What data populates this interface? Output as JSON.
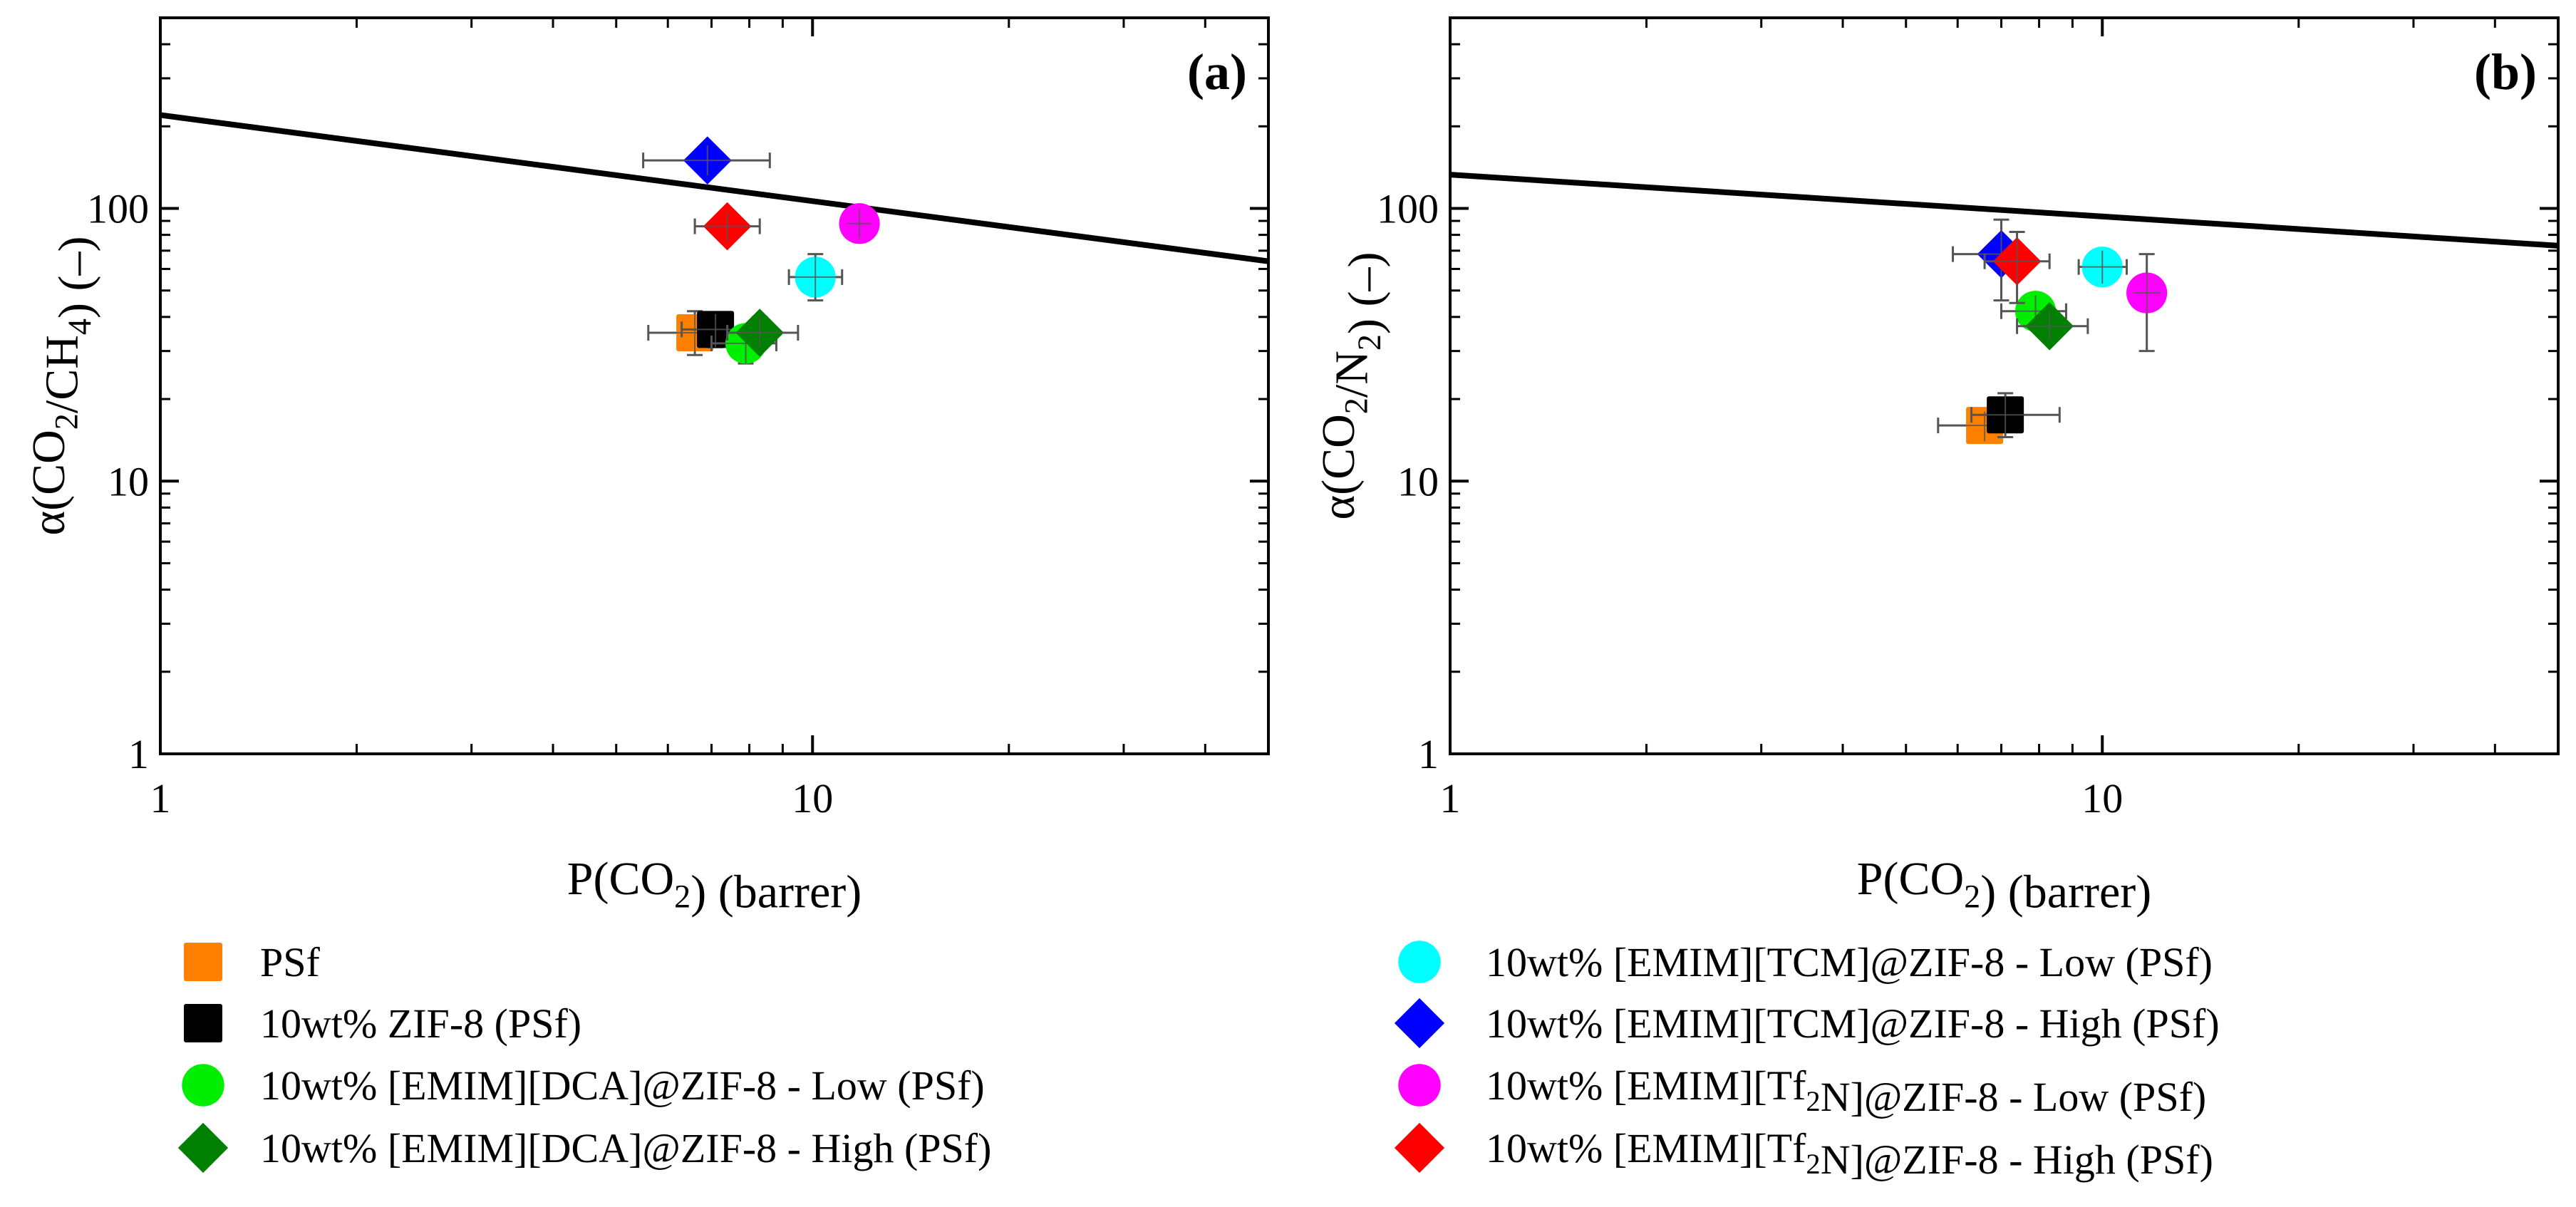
{
  "colors": {
    "PSf": "#ff8000",
    "ZIF8": "#000000",
    "DCA_low": "#00ee00",
    "DCA_high": "#008000",
    "TCM_low": "#00ffff",
    "TCM_high": "#0000ff",
    "Tf2N_low": "#ff00ff",
    "Tf2N_high": "#ff0000",
    "bound": "#000000",
    "error_bar": "#555555"
  },
  "chart_data": [
    {
      "type": "scatter",
      "panel_label": "(a)",
      "xlabel": "P(CO2) (barrer)",
      "ylabel": "α(CO2/CH4) (–)",
      "xscale": "log",
      "yscale": "log",
      "xlim": [
        1,
        50
      ],
      "ylim": [
        1,
        500
      ],
      "xticks": [
        1,
        10
      ],
      "yticks": [
        1,
        10,
        100
      ],
      "xtick_labels": [
        "1",
        "10"
      ],
      "ytick_labels": [
        "1",
        "10",
        "100"
      ],
      "upper_bound": {
        "x": [
          1,
          50
        ],
        "y": [
          220,
          64
        ]
      },
      "series": [
        {
          "name": "PSf",
          "marker": "square",
          "color_key": "PSf",
          "x": 6.6,
          "y": 35,
          "xerr": [
            5.6,
            7.4
          ],
          "yerr": [
            29,
            42
          ]
        },
        {
          "name": "10wt% ZIF-8 (PSf)",
          "marker": "square",
          "color_key": "ZIF8",
          "x": 7.1,
          "y": 36,
          "xerr": [
            6.3,
            8.1
          ],
          "yerr": [
            31,
            41
          ]
        },
        {
          "name": "10wt% [EMIM][DCA]@ZIF-8 - Low (PSf)",
          "marker": "circle",
          "color_key": "DCA_low",
          "x": 7.9,
          "y": 32,
          "xerr": [
            7.0,
            8.8
          ],
          "yerr": [
            27,
            37
          ]
        },
        {
          "name": "10wt% [EMIM][DCA]@ZIF-8 - High (PSf)",
          "marker": "diamond",
          "color_key": "DCA_high",
          "x": 8.3,
          "y": 35,
          "xerr": [
            7.4,
            9.5
          ],
          "yerr": [
            31,
            40
          ]
        },
        {
          "name": "10wt% [EMIM][TCM]@ZIF-8 - Low (PSf)",
          "marker": "circle",
          "color_key": "TCM_low",
          "x": 10.1,
          "y": 56,
          "xerr": [
            9.2,
            11.1
          ],
          "yerr": [
            46,
            68
          ]
        },
        {
          "name": "10wt% [EMIM][TCM]@ZIF-8 - High (PSf)",
          "marker": "diamond",
          "color_key": "TCM_high",
          "x": 6.9,
          "y": 150,
          "xerr": [
            5.5,
            8.6
          ],
          "yerr": [
            132,
            170
          ]
        },
        {
          "name": "10wt% [EMIM][Tf2N]@ZIF-8 - Low (PSf)",
          "marker": "circle",
          "color_key": "Tf2N_low",
          "x": 11.8,
          "y": 88,
          "xerr": [
            11.3,
            12.3
          ],
          "yerr": [
            78,
            99
          ]
        },
        {
          "name": "10wt% [EMIM][Tf2N]@ZIF-8 - High (PSf)",
          "marker": "diamond",
          "color_key": "Tf2N_high",
          "x": 7.4,
          "y": 86,
          "xerr": [
            6.6,
            8.3
          ],
          "yerr": [
            76,
            97
          ]
        }
      ]
    },
    {
      "type": "scatter",
      "panel_label": "(b)",
      "xlabel": "P(CO2) (barrer)",
      "ylabel": "α(CO2/N2) (–)",
      "xscale": "log",
      "yscale": "log",
      "xlim": [
        1,
        50
      ],
      "ylim": [
        1,
        500
      ],
      "xticks": [
        1,
        10
      ],
      "yticks": [
        1,
        10,
        100
      ],
      "xtick_labels": [
        "1",
        "10"
      ],
      "ytick_labels": [
        "1",
        "10",
        "100"
      ],
      "upper_bound": {
        "x": [
          1,
          50
        ],
        "y": [
          133,
          73
        ]
      },
      "series": [
        {
          "name": "PSf",
          "marker": "square",
          "color_key": "PSf",
          "x": 6.6,
          "y": 16,
          "xerr": [
            5.6,
            7.4
          ],
          "yerr": [
            14,
            18
          ]
        },
        {
          "name": "10wt% ZIF-8 (PSf)",
          "marker": "square",
          "color_key": "ZIF8",
          "x": 7.1,
          "y": 17.5,
          "xerr": [
            6.3,
            8.6
          ],
          "yerr": [
            14.5,
            21
          ]
        },
        {
          "name": "10wt% [EMIM][DCA]@ZIF-8 - Low (PSf)",
          "marker": "circle",
          "color_key": "DCA_low",
          "x": 7.9,
          "y": 42,
          "xerr": [
            7.0,
            8.8
          ],
          "yerr": [
            37,
            48
          ]
        },
        {
          "name": "10wt% [EMIM][DCA]@ZIF-8 - High (PSf)",
          "marker": "diamond",
          "color_key": "DCA_high",
          "x": 8.3,
          "y": 37,
          "xerr": [
            7.4,
            9.5
          ],
          "yerr": [
            33,
            42
          ]
        },
        {
          "name": "10wt% [EMIM][TCM]@ZIF-8 - Low (PSf)",
          "marker": "circle",
          "color_key": "TCM_low",
          "x": 10.0,
          "y": 61,
          "xerr": [
            9.2,
            10.9
          ],
          "yerr": [
            53,
            70
          ]
        },
        {
          "name": "10wt% [EMIM][TCM]@ZIF-8 - High (PSf)",
          "marker": "diamond",
          "color_key": "TCM_high",
          "x": 7.0,
          "y": 68,
          "xerr": [
            5.9,
            7.4
          ],
          "yerr": [
            46,
            91
          ]
        },
        {
          "name": "10wt% [EMIM][Tf2N]@ZIF-8 - Low (PSf)",
          "marker": "circle",
          "color_key": "Tf2N_low",
          "x": 11.7,
          "y": 49,
          "xerr": [
            11.2,
            12.3
          ],
          "yerr": [
            30,
            68
          ]
        },
        {
          "name": "10wt% [EMIM][Tf2N]@ZIF-8 - High (PSf)",
          "marker": "diamond",
          "color_key": "Tf2N_high",
          "x": 7.4,
          "y": 64,
          "xerr": [
            6.6,
            8.3
          ],
          "yerr": [
            45,
            82
          ]
        }
      ]
    }
  ],
  "legend": {
    "left": [
      {
        "label": "PSf",
        "marker": "square",
        "color_key": "PSf"
      },
      {
        "label": "10wt% ZIF-8 (PSf)",
        "marker": "square",
        "color_key": "ZIF8"
      },
      {
        "label": "10wt% [EMIM][DCA]@ZIF-8 - Low (PSf)",
        "marker": "circle",
        "color_key": "DCA_low"
      },
      {
        "label": "10wt% [EMIM][DCA]@ZIF-8 - High (PSf)",
        "marker": "diamond",
        "color_key": "DCA_high"
      }
    ],
    "right": [
      {
        "label": "10wt% [EMIM][TCM]@ZIF-8 - Low (PSf)",
        "marker": "circle",
        "color_key": "TCM_low"
      },
      {
        "label": "10wt% [EMIM][TCM]@ZIF-8 - High (PSf)",
        "marker": "diamond",
        "color_key": "TCM_high"
      },
      {
        "label": "10wt% [EMIM][Tf2N]@ZIF-8 - Low (PSf)",
        "marker": "circle",
        "color_key": "Tf2N_low"
      },
      {
        "label": "10wt% [EMIM][Tf2N]@ZIF-8 - High (PSf)",
        "marker": "diamond",
        "color_key": "Tf2N_high"
      }
    ]
  }
}
